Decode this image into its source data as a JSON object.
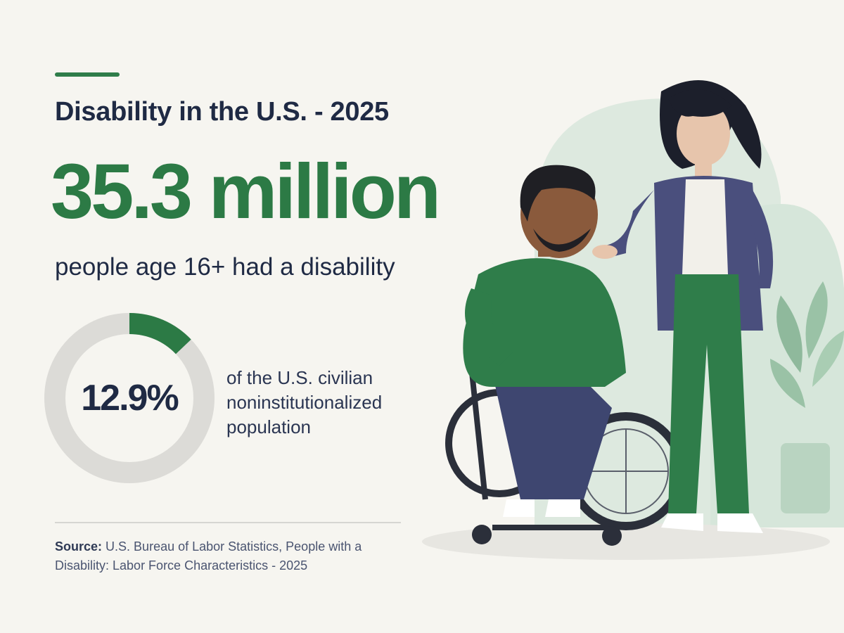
{
  "header": {
    "title": "Disability in the U.S. - 2025"
  },
  "headline_stat": {
    "value": "35.3 million",
    "description": "people age 16+ had a disability"
  },
  "share_stat": {
    "value_label": "12.9%",
    "fraction": 0.129,
    "description_lines": [
      "of the U.S. civilian",
      "noninstitutionalized",
      "population"
    ]
  },
  "source": {
    "label": "Source:",
    "text": "U.S. Bureau of Labor Statistics, People with a Disability: Labor Force Characteristics - 2025"
  },
  "colors": {
    "accent": "#2c7a45",
    "ring_track": "#dcdbd7",
    "background": "#f6f5f0",
    "text_dark": "#1f2a44"
  },
  "illustration": {
    "subject": "man-in-wheelchair-with-standing-woman"
  }
}
